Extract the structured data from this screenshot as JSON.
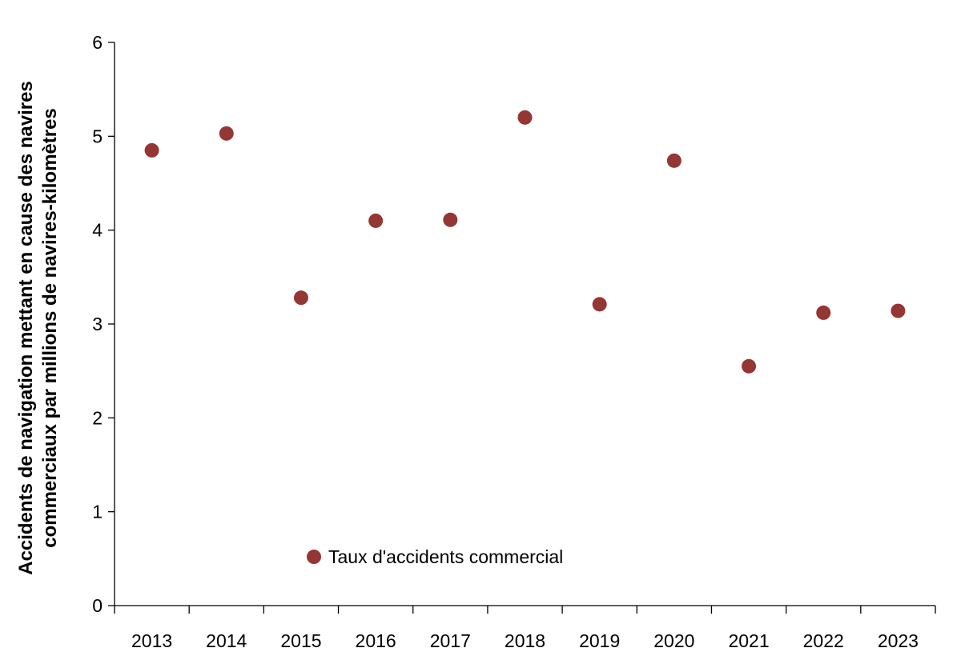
{
  "chart_data": {
    "type": "scatter",
    "title": "",
    "xlabel": "",
    "ylabel_lines": [
      "Accidents de navigation mettant en cause des navires",
      "commerciaux par millions de navires-kilomètres"
    ],
    "categories": [
      "2013",
      "2014",
      "2015",
      "2016",
      "2017",
      "2018",
      "2019",
      "2020",
      "2021",
      "2022",
      "2023"
    ],
    "series": [
      {
        "name": "Taux d'accidents commercial",
        "color": "#943634",
        "values": [
          4.85,
          5.03,
          3.28,
          4.1,
          4.11,
          5.2,
          3.21,
          4.74,
          2.55,
          3.12,
          3.14
        ]
      }
    ],
    "ylim": [
      0,
      6
    ],
    "yticks": [
      "0",
      "1",
      "2",
      "3",
      "4",
      "5",
      "6"
    ],
    "grid": false,
    "legend_position": "bottom-left inside plot"
  }
}
